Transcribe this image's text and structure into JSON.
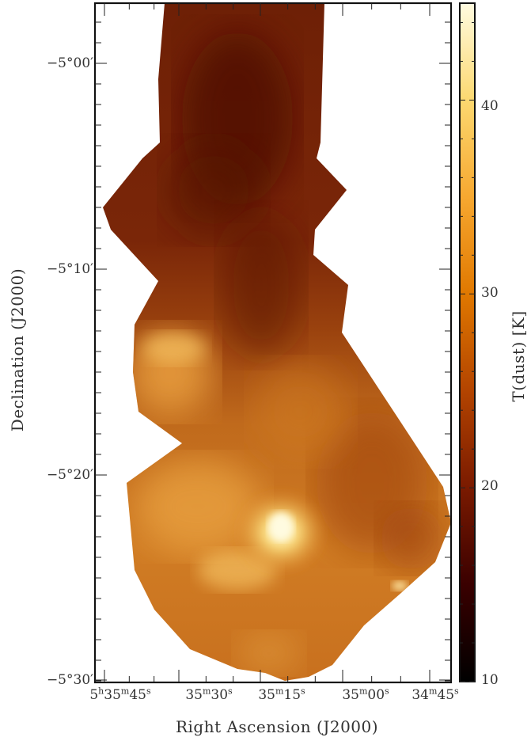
{
  "figure": {
    "x_axis_title": "Right Ascension (J2000)",
    "y_axis_title": "Declination (J2000)",
    "colorbar_title": "T(dust) [K]"
  },
  "dec_ticks": [
    {
      "d": "5",
      "m": "00",
      "label": "−5°00′"
    },
    {
      "d": "5",
      "m": "10",
      "label": "−5°10′"
    },
    {
      "d": "5",
      "m": "20",
      "label": "−5°20′"
    },
    {
      "d": "5",
      "m": "30",
      "label": "−5°30′"
    }
  ],
  "ra_ticks": [
    {
      "h": "5",
      "m": "35",
      "s": "45",
      "show_h": true
    },
    {
      "h": "",
      "m": "35",
      "s": "30",
      "show_h": false
    },
    {
      "h": "",
      "m": "35",
      "s": "15",
      "show_h": false
    },
    {
      "h": "",
      "m": "35",
      "s": "00",
      "show_h": false
    },
    {
      "h": "",
      "m": "34",
      "s": "45",
      "show_h": false
    }
  ],
  "colorbar": {
    "min": 10,
    "max": 45,
    "ticks": [
      "10",
      "20",
      "30",
      "40"
    ],
    "colormap": [
      "#000000",
      "#3a0000",
      "#7a1a00",
      "#b34400",
      "#e07800",
      "#f7a830",
      "#fcd870",
      "#fffbe0"
    ]
  },
  "image_palette": {
    "cold": "#5a1400",
    "mid": "#9a3c08",
    "warm": "#d4781c",
    "hot": "#f5c050",
    "hottest": "#fff0b0"
  }
}
